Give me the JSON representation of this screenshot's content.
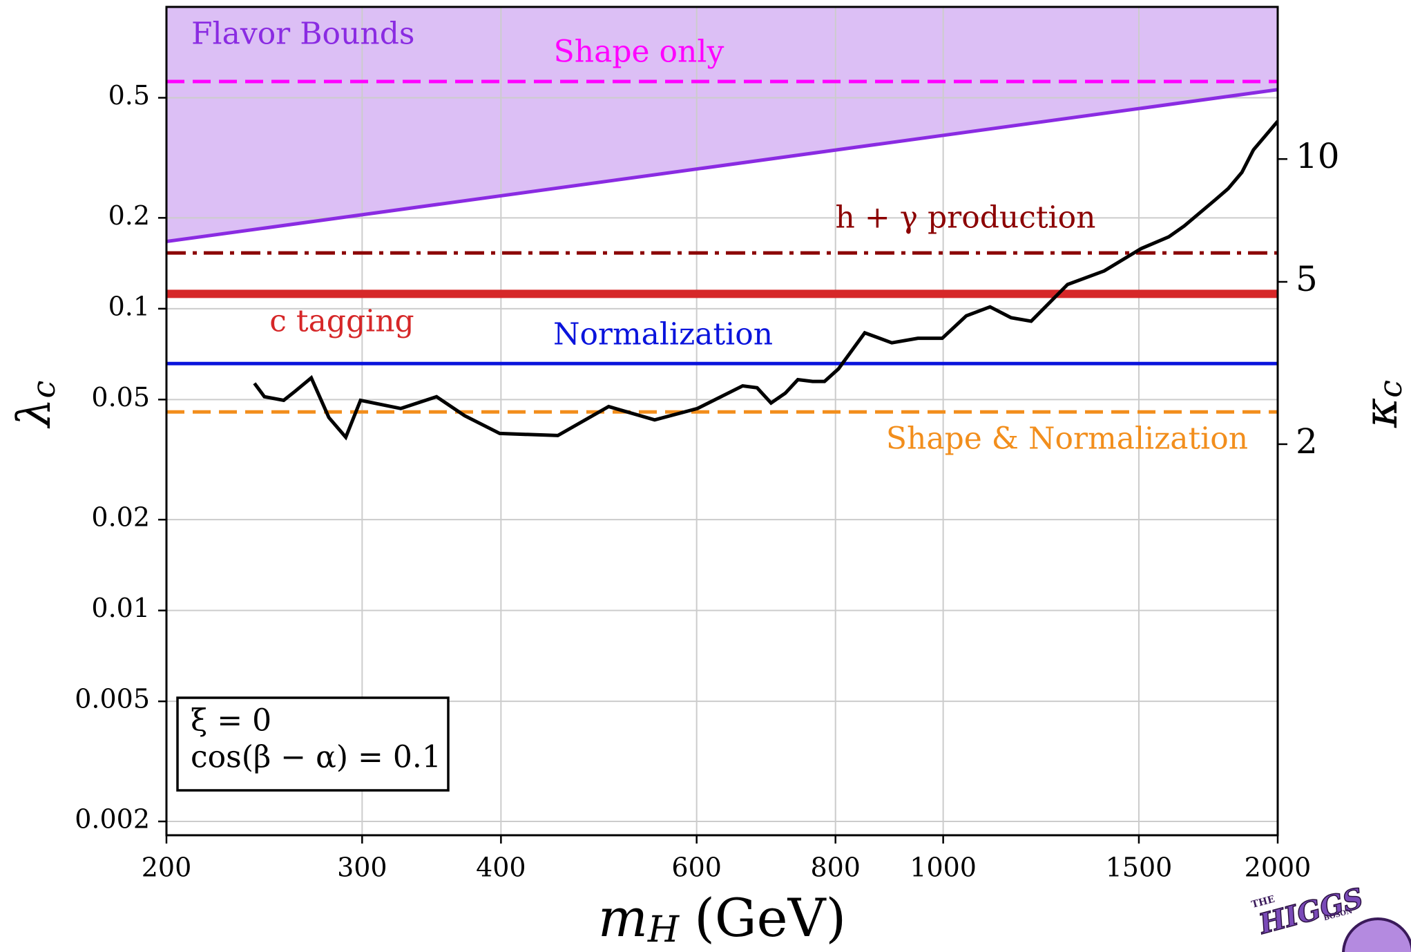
{
  "chart_data": {
    "type": "line",
    "xscale": "log",
    "yscale": "log",
    "y2scale": "log",
    "xlabel": {
      "symbol": "m",
      "subscript": "H",
      "unit": "(GeV)"
    },
    "ylabel": {
      "symbol": "λ",
      "subscript": "c"
    },
    "y2label": {
      "symbol": "κ",
      "subscript": "c"
    },
    "xlim": [
      200,
      2000
    ],
    "xticks": [
      200,
      300,
      400,
      600,
      800,
      1000,
      1500,
      2000
    ],
    "ylim": [
      0.0018,
      1
    ],
    "yticks": [
      0.002,
      0.005,
      0.01,
      0.02,
      0.05,
      0.1,
      0.2,
      0.5
    ],
    "y2lim": [
      0.22,
      23.6
    ],
    "y2ticks": [
      2,
      5,
      10
    ],
    "grid": true,
    "series": [
      {
        "label": "Flavor Bounds",
        "color": "#8a2be2",
        "fill": "#dcbff5",
        "linestyle": "solid",
        "x": [
          200,
          2000
        ],
        "values": [
          0.167,
          0.532
        ]
      },
      {
        "label": "Shape only",
        "color": "#ff00ff",
        "linestyle": "dashed",
        "x": [
          200,
          2000
        ],
        "values": [
          0.566,
          0.566
        ]
      },
      {
        "label": "h + γ production",
        "color": "#8b0000",
        "linestyle": "dashdot",
        "x": [
          200,
          2000
        ],
        "values": [
          0.153,
          0.153
        ]
      },
      {
        "label": "c tagging",
        "color": "#d62728",
        "linestyle": "solid",
        "x": [
          200,
          2000
        ],
        "values": [
          0.112,
          0.112
        ]
      },
      {
        "label": "Normalization",
        "color": "#0a14dc",
        "linestyle": "solid",
        "x": [
          200,
          2000
        ],
        "values": [
          0.0658,
          0.0658
        ]
      },
      {
        "label": "Shape & Normalization",
        "color": "#f28e1c",
        "linestyle": "dashed",
        "x": [
          200,
          2000
        ],
        "values": [
          0.0455,
          0.0455
        ]
      },
      {
        "color": "#000000",
        "linestyle": "solid",
        "x": [
          240,
          245,
          255,
          261,
          270,
          280,
          290,
          299,
          325,
          350,
          371,
          399,
          450,
          500,
          550,
          601,
          660,
          680,
          700,
          721,
          740,
          763,
          782,
          805,
          850,
          899,
          949,
          998,
          1049,
          1102,
          1151,
          1200,
          1294,
          1396,
          1506,
          1596,
          1648,
          1756,
          1805,
          1857,
          1902,
          2000
        ],
        "values": [
          0.0566,
          0.0511,
          0.0497,
          0.0532,
          0.059,
          0.0436,
          0.0375,
          0.0497,
          0.0467,
          0.0511,
          0.0442,
          0.0386,
          0.038,
          0.0474,
          0.0428,
          0.0467,
          0.0555,
          0.0547,
          0.0487,
          0.0525,
          0.0582,
          0.0574,
          0.0574,
          0.0632,
          0.0832,
          0.0771,
          0.0798,
          0.0798,
          0.0947,
          0.1014,
          0.0934,
          0.0909,
          0.1203,
          0.1334,
          0.158,
          0.173,
          0.188,
          0.229,
          0.25,
          0.283,
          0.336,
          0.418
        ]
      }
    ],
    "annotation_box": [
      "ξ = 0",
      "cos(β − α) = 0.1"
    ],
    "logo": [
      "THE",
      "HIGGS",
      "BOSON"
    ]
  }
}
